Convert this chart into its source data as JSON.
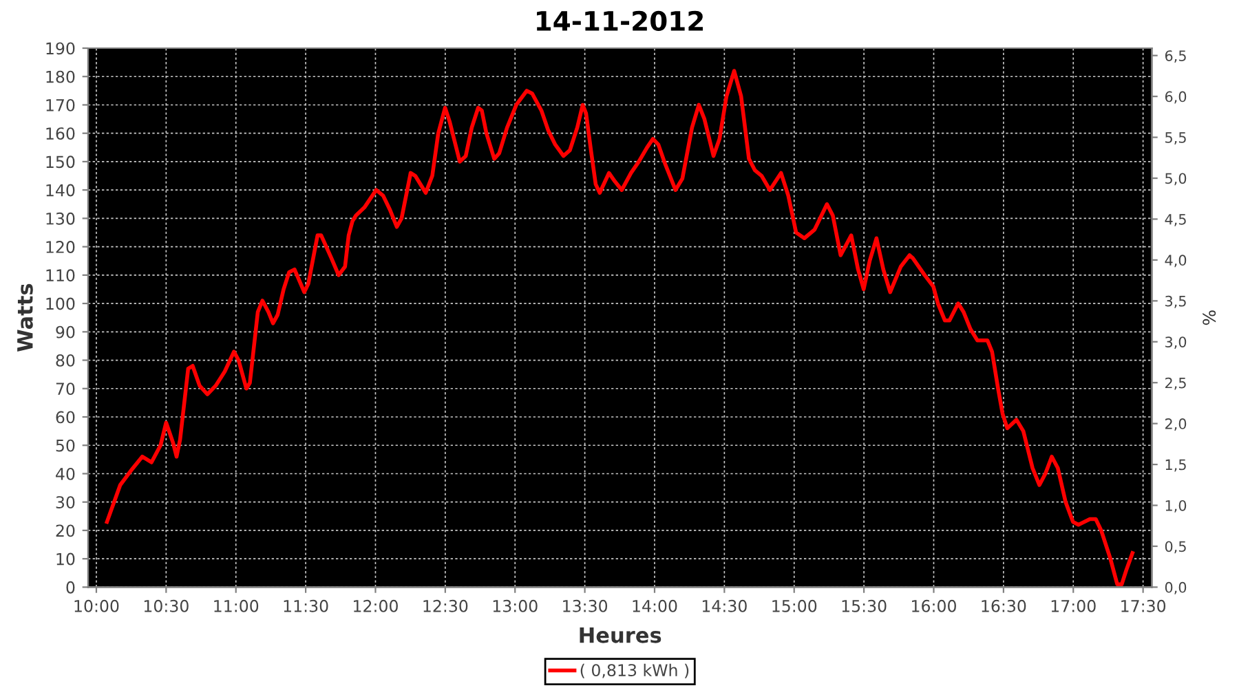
{
  "chart_data": {
    "type": "line",
    "title": "14-11-2012",
    "xlabel": "Heures",
    "ylabel": "Watts",
    "y2label": "%",
    "x": [
      10.076,
      10.171,
      10.247,
      10.329,
      10.395,
      10.46,
      10.5,
      10.549,
      10.575,
      10.6,
      10.658,
      10.69,
      10.74,
      10.796,
      10.855,
      10.92,
      10.986,
      11.019,
      11.075,
      11.1,
      11.157,
      11.19,
      11.233,
      11.266,
      11.299,
      11.342,
      11.381,
      11.42,
      11.49,
      11.519,
      11.585,
      11.611,
      11.684,
      11.736,
      11.782,
      11.808,
      11.835,
      11.86,
      11.923,
      12.005,
      12.055,
      12.104,
      12.153,
      12.187,
      12.252,
      12.285,
      12.36,
      12.407,
      12.45,
      12.499,
      12.532,
      12.604,
      12.647,
      12.69,
      12.736,
      12.762,
      12.795,
      12.851,
      12.887,
      12.943,
      13.009,
      13.084,
      13.123,
      13.189,
      13.238,
      13.288,
      13.347,
      13.393,
      13.446,
      13.485,
      13.509,
      13.544,
      13.578,
      13.607,
      13.673,
      13.716,
      13.765,
      13.831,
      13.887,
      13.946,
      13.988,
      14.027,
      14.077,
      14.15,
      14.199,
      14.268,
      14.317,
      14.357,
      14.422,
      14.465,
      14.515,
      14.57,
      14.62,
      14.676,
      14.718,
      14.767,
      14.826,
      14.906,
      14.958,
      15.014,
      15.073,
      15.146,
      15.235,
      15.277,
      15.333,
      15.409,
      15.458,
      15.498,
      15.541,
      15.59,
      15.639,
      15.688,
      15.764,
      15.827,
      15.85,
      15.935,
      15.997,
      16.03,
      16.08,
      16.113,
      16.175,
      16.214,
      16.263,
      16.313,
      16.385,
      16.418,
      16.461,
      16.494,
      16.527,
      16.593,
      16.642,
      16.708,
      16.757,
      16.8,
      16.846,
      16.889,
      16.945,
      16.998,
      17.037,
      17.119,
      17.161,
      17.2,
      17.266,
      17.315,
      17.347,
      17.38,
      17.424
    ],
    "series": [
      {
        "name": "( 0,813 kWh )",
        "color": "#ff0000",
        "values": [
          23,
          36,
          41,
          46,
          44,
          50,
          58,
          51,
          46,
          52,
          77,
          78,
          71,
          68,
          71,
          76,
          83,
          80,
          70,
          72,
          97,
          101,
          97,
          93,
          96,
          105,
          111,
          112,
          104,
          107,
          124,
          124,
          116,
          110,
          113,
          124,
          129,
          131,
          134,
          140,
          138,
          133,
          127,
          130,
          146,
          145,
          139,
          145,
          160,
          169,
          164,
          150,
          152,
          162,
          169,
          168,
          160,
          151,
          153,
          162,
          170,
          175,
          174,
          168,
          161,
          156,
          152,
          154,
          162,
          170,
          167,
          154,
          142,
          139,
          146,
          143,
          140,
          146,
          150,
          155,
          158,
          156,
          149,
          140,
          144,
          162,
          170,
          165,
          152,
          158,
          173,
          182,
          173,
          151,
          147,
          145,
          140,
          146,
          138,
          125,
          123,
          126,
          135,
          131,
          117,
          124,
          112,
          105,
          115,
          123,
          112,
          104,
          113,
          117,
          116,
          110,
          106,
          100,
          94,
          94,
          100,
          97,
          91,
          87,
          87,
          83,
          70,
          61,
          56,
          59,
          55,
          42,
          36,
          40,
          46,
          42,
          30,
          23,
          22,
          24,
          24,
          20,
          10,
          1,
          1,
          6,
          12
        ]
      }
    ],
    "xlim": [
      9.941,
      17.563
    ],
    "xticks": [
      {
        "value": 10,
        "label": "10:00"
      },
      {
        "value": 10.5,
        "label": "10:30"
      },
      {
        "value": 11,
        "label": "11:00"
      },
      {
        "value": 11.5,
        "label": "11:30"
      },
      {
        "value": 12,
        "label": "12:00"
      },
      {
        "value": 12.5,
        "label": "12:30"
      },
      {
        "value": 13,
        "label": "13:00"
      },
      {
        "value": 13.5,
        "label": "13:30"
      },
      {
        "value": 14,
        "label": "14:00"
      },
      {
        "value": 14.5,
        "label": "14:30"
      },
      {
        "value": 15,
        "label": "15:00"
      },
      {
        "value": 15.5,
        "label": "15:30"
      },
      {
        "value": 16,
        "label": "16:00"
      },
      {
        "value": 16.5,
        "label": "16:30"
      },
      {
        "value": 17,
        "label": "17:00"
      },
      {
        "value": 17.5,
        "label": "17:30"
      }
    ],
    "ylim": [
      0,
      190
    ],
    "yticks": [
      0,
      10,
      20,
      30,
      40,
      50,
      60,
      70,
      80,
      90,
      100,
      110,
      120,
      130,
      140,
      150,
      160,
      170,
      180,
      190
    ],
    "y2lim": [
      0,
      6.59
    ],
    "y2ticks": [
      {
        "value": 0,
        "label": "0,0"
      },
      {
        "value": 0.5,
        "label": "0,5"
      },
      {
        "value": 1,
        "label": "1,0"
      },
      {
        "value": 1.5,
        "label": "1,5"
      },
      {
        "value": 2,
        "label": "2,0"
      },
      {
        "value": 2.5,
        "label": "2,5"
      },
      {
        "value": 3,
        "label": "3,0"
      },
      {
        "value": 3.5,
        "label": "3,5"
      },
      {
        "value": 4,
        "label": "4,0"
      },
      {
        "value": 4.5,
        "label": "4,5"
      },
      {
        "value": 5,
        "label": "5,0"
      },
      {
        "value": 5.5,
        "label": "5,5"
      },
      {
        "value": 6,
        "label": "6,0"
      },
      {
        "value": 6.5,
        "label": "6,5"
      }
    ],
    "grid": true,
    "legend": "bottom",
    "line_style": "solid"
  }
}
